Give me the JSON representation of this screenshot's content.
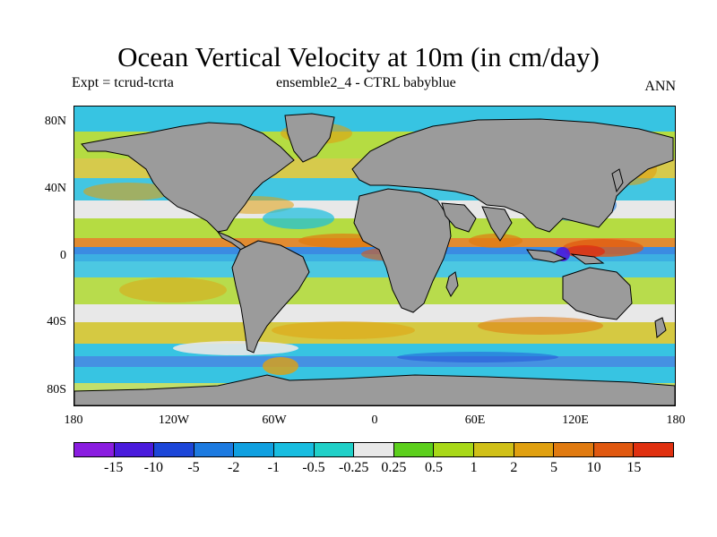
{
  "title": "Ocean Vertical Velocity at 10m (in cm/day)",
  "subtitle_left": "Expt = tcrud-tcrta",
  "subtitle_center": "ensemble2_4 - CTRL babyblue",
  "subtitle_right": "ANN",
  "lat_ticks": [
    "80N",
    "40N",
    "0",
    "40S",
    "80S"
  ],
  "lon_ticks": [
    "180",
    "120W",
    "60W",
    "0",
    "60E",
    "120E",
    "180"
  ],
  "colorbar": {
    "colors": [
      "#8a1de0",
      "#4a1bdc",
      "#1c46d8",
      "#1c7ae0",
      "#10a0e0",
      "#18bde0",
      "#20d0c8",
      "#e8e8e8",
      "#5ccf1c",
      "#a8d818",
      "#d0c018",
      "#e0a010",
      "#e07a10",
      "#e05810",
      "#e03010"
    ],
    "labels": [
      "-15",
      "-10",
      "-5",
      "-2",
      "-1",
      "-0.5",
      "-0.25",
      "0.25",
      "0.5",
      "1",
      "2",
      "5",
      "10",
      "15"
    ]
  },
  "land_color": "#9b9b9b"
}
